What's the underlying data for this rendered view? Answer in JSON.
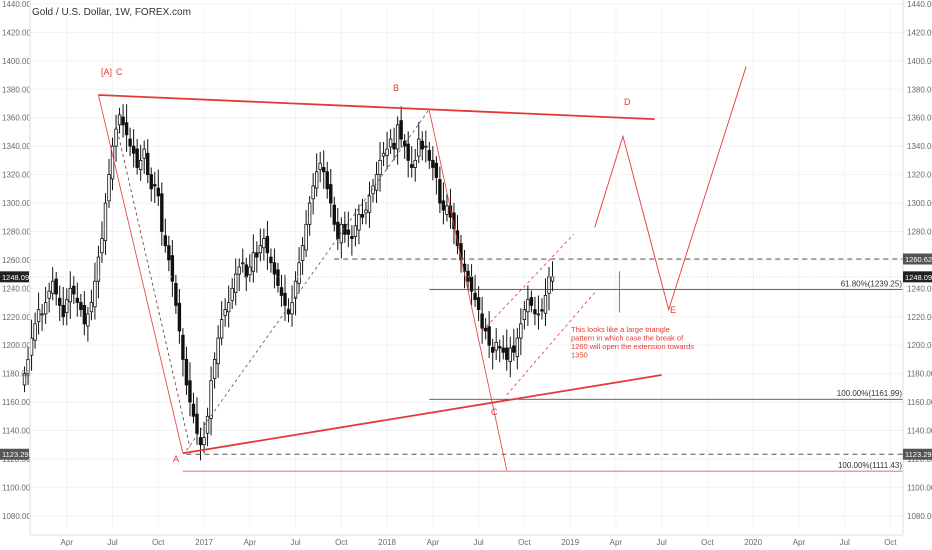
{
  "chart_data": {
    "type": "candlestick",
    "title": "Gold / U.S. Dollar, 1W, FOREX.com",
    "colors": {
      "up": "#ffffff",
      "down": "#111111",
      "annotation": "#e53935",
      "grid": "#f0f0f0"
    },
    "y_axis": {
      "ylim": [
        1070,
        1440
      ],
      "ticks": [
        "1440.00",
        "1420.00",
        "1400.00",
        "1380.00",
        "1360.00",
        "1340.00",
        "1320.00",
        "1300.00",
        "1280.00",
        "1260.00",
        "1240.00",
        "1220.00",
        "1200.00",
        "1180.00",
        "1160.00",
        "1140.00",
        "1120.00",
        "1100.00",
        "1080.00"
      ],
      "price_badges": [
        "1260.62",
        "1248.09",
        "1123.29"
      ]
    },
    "x_axis": {
      "labels": [
        "Apr",
        "Jul",
        "Oct",
        "2017",
        "Apr",
        "Jul",
        "Oct",
        "2018",
        "Apr",
        "Jul",
        "Oct",
        "2019",
        "Apr",
        "Jul",
        "Oct",
        "2020",
        "Apr",
        "Jul",
        "Oct"
      ],
      "label_weeks": [
        13,
        26,
        39,
        52,
        65,
        78,
        91,
        104,
        117,
        130,
        143,
        156,
        169,
        182,
        195,
        208,
        221,
        234,
        247
      ]
    },
    "series_close": [
      1180,
      1190,
      1205,
      1215,
      1225,
      1222,
      1230,
      1238,
      1245,
      1236,
      1228,
      1220,
      1232,
      1240,
      1236,
      1230,
      1225,
      1215,
      1222,
      1230,
      1245,
      1262,
      1275,
      1300,
      1320,
      1340,
      1352,
      1362,
      1355,
      1348,
      1340,
      1335,
      1325,
      1330,
      1338,
      1320,
      1310,
      1312,
      1305,
      1280,
      1270,
      1260,
      1245,
      1228,
      1210,
      1190,
      1172,
      1160,
      1150,
      1138,
      1130,
      1135,
      1150,
      1175,
      1190,
      1205,
      1218,
      1225,
      1230,
      1240,
      1250,
      1255,
      1258,
      1248,
      1255,
      1265,
      1262,
      1270,
      1275,
      1265,
      1258,
      1250,
      1242,
      1235,
      1228,
      1222,
      1230,
      1245,
      1258,
      1270,
      1285,
      1300,
      1312,
      1322,
      1328,
      1322,
      1310,
      1300,
      1285,
      1275,
      1285,
      1278,
      1278,
      1275,
      1284,
      1292,
      1290,
      1295,
      1305,
      1312,
      1320,
      1330,
      1335,
      1338,
      1345,
      1338,
      1355,
      1345,
      1340,
      1330,
      1325,
      1330,
      1345,
      1338,
      1340,
      1330,
      1325,
      1318,
      1300,
      1295,
      1298,
      1290,
      1282,
      1270,
      1260,
      1252,
      1245,
      1238,
      1232,
      1225,
      1212,
      1210,
      1200,
      1195,
      1202,
      1198,
      1195,
      1190,
      1198,
      1195,
      1205,
      1215,
      1225,
      1232,
      1228,
      1222,
      1222,
      1224,
      1235,
      1248,
      1248
    ]
  },
  "annotations": {
    "wave_labels": [
      "[A]",
      "C",
      "B",
      "D",
      "E",
      "A",
      "C"
    ],
    "fib_labels": [
      "61.80%(1239.25)",
      "100.00%(1161.99)",
      "100.00%(1111.43)"
    ],
    "note_lines": [
      "This looks like a large triangle",
      "pattern in which case the break of",
      "1260 will open the extension towards",
      "1350"
    ]
  }
}
